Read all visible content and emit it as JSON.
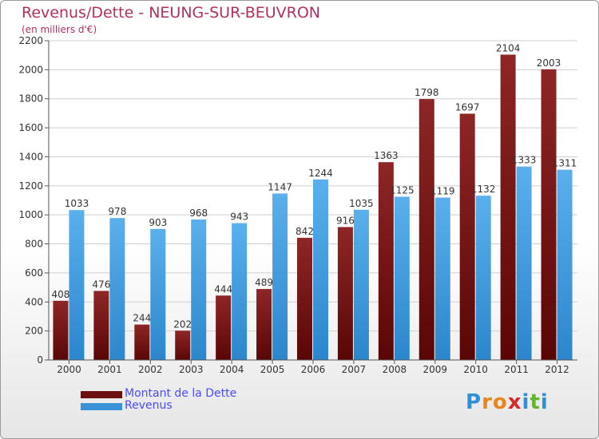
{
  "header": {
    "title": "Revenus/Dette - NEUNG-SUR-BEUVRON",
    "subtitle": "(en milliers d'€)"
  },
  "colors": {
    "title": "#b03060",
    "debt": "#8b1a1a",
    "revenue": "#4aa6e8",
    "legend_text": "#4b4bff"
  },
  "chart_data": {
    "type": "bar",
    "title": "Revenus/Dette - NEUNG-SUR-BEUVRON",
    "ylabel": "(en milliers d'€)",
    "xlabel": "",
    "ylim": [
      0,
      2200
    ],
    "yticks": [
      0,
      200,
      400,
      600,
      800,
      1000,
      1200,
      1400,
      1600,
      1800,
      2000,
      2200
    ],
    "grid": true,
    "legend_position": "bottom-left",
    "categories": [
      "2000",
      "2001",
      "2002",
      "2003",
      "2004",
      "2005",
      "2006",
      "2007",
      "2008",
      "2009",
      "2010",
      "2011",
      "2012"
    ],
    "series": [
      {
        "name": "Montant de la Dette",
        "color": "#8b1a1a",
        "values": [
          408,
          476,
          244,
          202,
          444,
          489,
          842,
          916,
          1363,
          1798,
          1697,
          2104,
          2003
        ]
      },
      {
        "name": "Revenus",
        "color": "#4aa6e8",
        "values": [
          1033,
          978,
          903,
          968,
          943,
          1147,
          1244,
          1035,
          1125,
          1119,
          1132,
          1333,
          1311
        ]
      }
    ]
  },
  "legend": {
    "items": [
      {
        "label": "Montant de la Dette",
        "color": "#6b0f0f"
      },
      {
        "label": "Revenus",
        "color": "#3a93d6"
      }
    ]
  },
  "logo": {
    "letters": [
      "P",
      "r",
      "o",
      "x",
      "i",
      "t",
      "i"
    ],
    "colors": [
      "#2f8fd8",
      "#e8861c",
      "#e8861c",
      "#d42a2a",
      "#2f8fd8",
      "#62b52e",
      "#2f8fd8"
    ]
  }
}
